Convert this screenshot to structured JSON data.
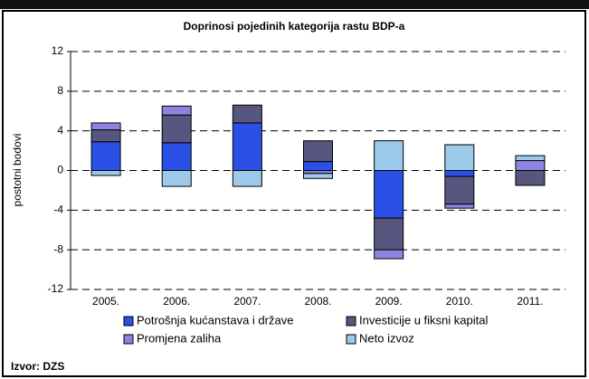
{
  "chart_data": {
    "type": "stacked_bar",
    "title": "Doprinosi pojedinih kategorija rastu BDP-a",
    "y_label": "postotni bodovi",
    "source": "Izvor: DZS",
    "categories": [
      "2005.",
      "2006.",
      "2007.",
      "2008.",
      "2009.",
      "2010.",
      "2011."
    ],
    "series": [
      {
        "name": "Potrošnja kućanstava i države",
        "color": "#2b50e6",
        "values": [
          2.9,
          2.8,
          4.8,
          0.9,
          -4.8,
          -0.6,
          0
        ]
      },
      {
        "name": "Investicije u fiksni kapital",
        "color": "#57567e",
        "values": [
          1.2,
          2.8,
          1.8,
          2.1,
          -3.2,
          -2.8,
          -1.5
        ]
      },
      {
        "name": "Promjena zaliha",
        "color": "#8d84e2",
        "values": [
          0.7,
          0.9,
          0,
          -0.3,
          -0.9,
          -0.4,
          1.0
        ]
      },
      {
        "name": "Neto izvoz",
        "color": "#9dc9ea",
        "values": [
          -0.5,
          -1.6,
          -1.6,
          -0.5,
          3.0,
          2.6,
          0.5
        ]
      }
    ],
    "ylim": [
      -12,
      12
    ],
    "yticks": [
      -12,
      -8,
      -4,
      0,
      4,
      8,
      12
    ],
    "grid": true
  }
}
